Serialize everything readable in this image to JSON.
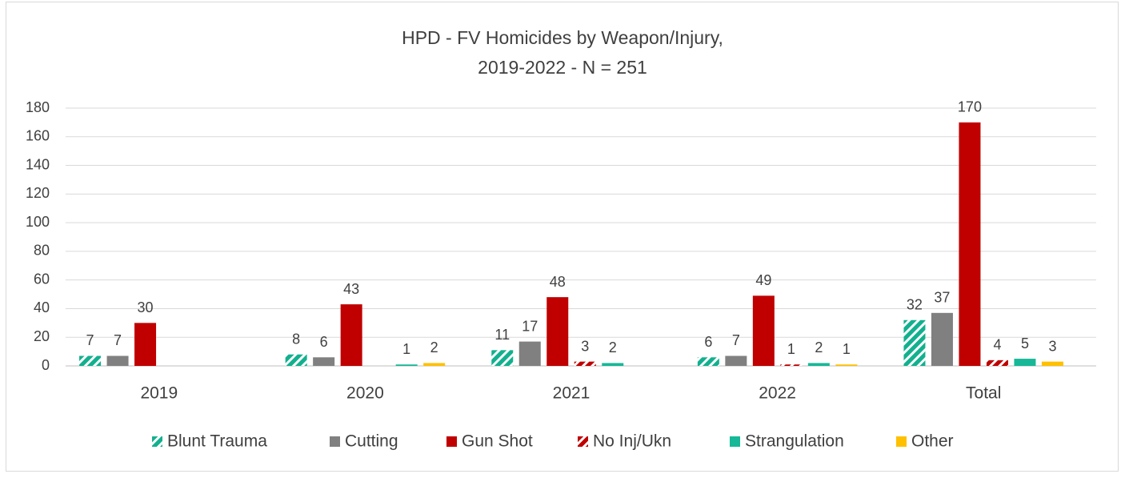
{
  "chart_data": {
    "type": "bar",
    "title": [
      "HPD - FV Homicides by Weapon/Injury,",
      "2019-2022 - N = 251"
    ],
    "categories": [
      "2019",
      "2020",
      "2021",
      "2022",
      "Total"
    ],
    "series": [
      {
        "name": "Blunt Trauma",
        "color": "#12b08e",
        "pattern": "stripes",
        "values": [
          7,
          8,
          11,
          6,
          32
        ]
      },
      {
        "name": "Cutting",
        "color": "#808080",
        "values": [
          7,
          6,
          17,
          7,
          37
        ]
      },
      {
        "name": "Gun Shot",
        "color": "#c00000",
        "values": [
          30,
          43,
          48,
          49,
          170
        ]
      },
      {
        "name": "No Inj/Ukn",
        "color": "#c00000",
        "pattern": "stripes",
        "values": [
          null,
          null,
          3,
          1,
          4
        ]
      },
      {
        "name": "Strangulation",
        "color": "#17b897",
        "values": [
          null,
          1,
          2,
          2,
          5
        ]
      },
      {
        "name": "Other",
        "color": "#ffc000",
        "values": [
          null,
          2,
          null,
          1,
          3
        ]
      }
    ],
    "ylim": [
      0,
      180
    ],
    "yticks": [
      0,
      20,
      40,
      60,
      80,
      100,
      120,
      140,
      160,
      180
    ],
    "grid": true,
    "legend": "bottom"
  }
}
